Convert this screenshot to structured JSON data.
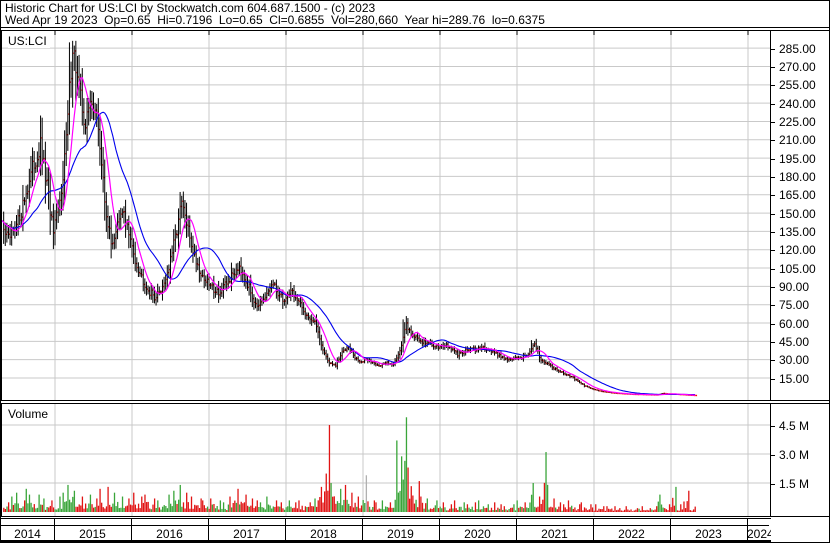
{
  "header": {
    "line1": "Historic Chart for US:LCI by Stockwatch.com 604.687.1500 - (c) 2023",
    "line2": "Wed Apr 19 2023  Op=0.65  Hi=0.7196  Lo=0.65  Cl=0.6855  Vol=280,660  Year hi=289.76  lo=0.6375"
  },
  "price_panel": {
    "symbol_label": "US:LCI",
    "y_tick_labels": [
      "285.00",
      "270.00",
      "255.00",
      "240.00",
      "225.00",
      "210.00",
      "195.00",
      "180.00",
      "165.00",
      "150.00",
      "135.00",
      "120.00",
      "105.00",
      "90.00",
      "75.00",
      "60.00",
      "45.00",
      "30.00",
      "15.00"
    ]
  },
  "volume_panel": {
    "label": "Volume",
    "y_tick_labels": [
      "4.5 M",
      "3.0 M",
      "1.5 M"
    ]
  },
  "x_axis": {
    "year_labels": [
      "2014",
      "2015",
      "2016",
      "2017",
      "2018",
      "2019",
      "2020",
      "2021",
      "2022",
      "2023",
      "2024"
    ]
  },
  "colors": {
    "grid": "#c9c9c9",
    "bar": "#000000",
    "close_tick": "#ff0000",
    "ma_short": "#ff00ff",
    "ma_long": "#0000ee",
    "vol_up": "#3aa53a",
    "vol_down": "#e01414",
    "vol_neutral": "#b0b0b0",
    "text": "#000000",
    "panel_bg": "#ffffff"
  },
  "chart_data": [
    {
      "type": "candlestick",
      "title": "US:LCI weekly price, 2014-2023 (monthly close approximations read from chart)",
      "x_start_month": "2014-04",
      "x_end_label": "Wed Apr 19 2023",
      "ylim": [
        0,
        295
      ],
      "y_ticks": [
        285,
        270,
        255,
        240,
        225,
        210,
        195,
        180,
        165,
        150,
        135,
        120,
        105,
        90,
        75,
        60,
        45,
        30,
        15
      ],
      "year_hi": 289.76,
      "year_lo": 0.6375,
      "last": {
        "open": 0.65,
        "high": 0.7196,
        "low": 0.65,
        "close": 0.6855,
        "volume": "280,660"
      },
      "closes": [
        142,
        128,
        135,
        152,
        172,
        190,
        204,
        172,
        133,
        158,
        210,
        289,
        250,
        222,
        245,
        220,
        160,
        124,
        140,
        152,
        126,
        108,
        95,
        85,
        81,
        90,
        105,
        130,
        158,
        135,
        115,
        100,
        93,
        88,
        85,
        92,
        100,
        108,
        95,
        82,
        73,
        80,
        92,
        85,
        78,
        88,
        78,
        70,
        64,
        58,
        38,
        27,
        25,
        36,
        42,
        31,
        28,
        30,
        27,
        25,
        28,
        26,
        38,
        58,
        50,
        46,
        44,
        42,
        41,
        42,
        39,
        34,
        37,
        39,
        38,
        40,
        38,
        35,
        32,
        30,
        31,
        32,
        35,
        42,
        30,
        27,
        23,
        20,
        18,
        15,
        11,
        8,
        6,
        4.5,
        3.5,
        2.8,
        2.3,
        2.0,
        1.7,
        1.5,
        1.4,
        1.2,
        1.1,
        2.4,
        1.9,
        1.6,
        1.3,
        0.9,
        0.69
      ],
      "highs_override": {
        "2015-03": 289.76,
        "2019-07": 63,
        "2021-03": 46
      },
      "overlays": [
        {
          "name": "moving-average-short",
          "color": "#ff00ff"
        },
        {
          "name": "moving-average-long",
          "color": "#0000ee"
        }
      ]
    },
    {
      "type": "bar",
      "title": "Volume (millions of shares, monthly approximations read from chart)",
      "x_start_month": "2014-04",
      "y_ticks": [
        1.5,
        3.0,
        4.5
      ],
      "values": [
        0.6,
        0.5,
        0.8,
        1.0,
        1.2,
        0.9,
        0.9,
        0.7,
        0.6,
        0.8,
        1.0,
        1.4,
        1.1,
        0.8,
        0.9,
        0.7,
        1.2,
        1.3,
        1.0,
        0.8,
        0.7,
        1.0,
        0.8,
        0.9,
        0.7,
        0.6,
        0.9,
        1.1,
        1.4,
        1.0,
        0.8,
        0.7,
        0.6,
        0.7,
        0.6,
        0.5,
        0.8,
        1.2,
        0.9,
        0.7,
        0.6,
        0.5,
        0.8,
        0.6,
        0.5,
        0.6,
        0.5,
        0.6,
        0.5,
        0.7,
        1.3,
        4.5,
        1.5,
        1.2,
        1.4,
        1.0,
        0.8,
        1.9,
        0.6,
        0.5,
        0.6,
        0.5,
        3.7,
        4.9,
        2.3,
        1.6,
        0.8,
        0.7,
        0.6,
        0.5,
        0.4,
        0.6,
        0.5,
        0.4,
        0.5,
        0.6,
        0.4,
        0.5,
        0.4,
        0.3,
        0.4,
        0.6,
        0.5,
        1.5,
        0.8,
        3.1,
        0.7,
        0.5,
        0.4,
        0.6,
        0.4,
        0.5,
        0.4,
        0.4,
        0.3,
        0.3,
        0.3,
        0.2,
        0.3,
        0.2,
        0.3,
        0.2,
        0.3,
        0.9,
        0.4,
        1.3,
        0.4,
        1.1,
        0.28
      ],
      "color_overrides": {
        "2018-07": "down",
        "2019-01": "neutral",
        "2019-06": "up",
        "2019-07": "up",
        "2021-05": "up",
        "2023-01": "up",
        "2023-03": "down"
      }
    }
  ]
}
